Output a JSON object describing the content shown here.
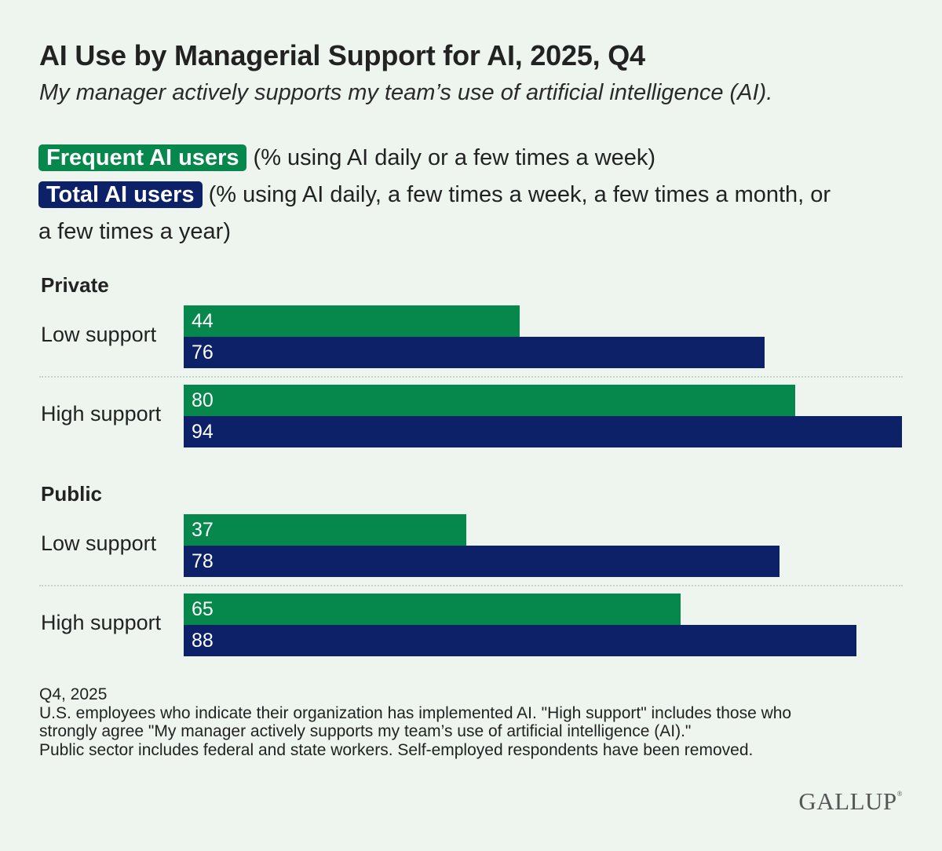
{
  "title": "AI Use by Managerial Support for AI, 2025, Q4",
  "subtitle": "My manager actively supports my team’s use of artificial intelligence (AI).",
  "legend": {
    "frequent_label": "Frequent AI users",
    "frequent_desc": "(% using AI daily or a few times a week)",
    "total_label": "Total AI users",
    "total_desc_line1": "(% using AI daily, a few times a week, a few times a month, or",
    "total_desc_line2": "a few times a year)"
  },
  "colors": {
    "frequent": "#06884c",
    "total": "#0d2168",
    "background": "#eef5ee"
  },
  "chart_data": {
    "type": "bar",
    "orientation": "horizontal",
    "groups": [
      {
        "name": "Private",
        "rows": [
          {
            "label": "Low support",
            "frequent": 44,
            "total": 76
          },
          {
            "label": "High support",
            "frequent": 80,
            "total": 94
          }
        ]
      },
      {
        "name": "Public",
        "rows": [
          {
            "label": "Low support",
            "frequent": 37,
            "total": 78
          },
          {
            "label": "High support",
            "frequent": 65,
            "total": 88
          }
        ]
      }
    ],
    "series": [
      {
        "name": "Frequent AI users",
        "key": "frequent",
        "color": "#06884c"
      },
      {
        "name": "Total AI users",
        "key": "total",
        "color": "#0d2168"
      }
    ],
    "xlim": [
      0,
      94
    ],
    "data_labels": true,
    "grid": false
  },
  "footnote": {
    "line1": "Q4, 2025",
    "line2": "U.S. employees who indicate their organization has implemented AI. \"High support\" includes those who",
    "line3": "strongly agree \"My manager actively supports my team’s use of artificial intelligence (AI).\"",
    "line4": "Public sector includes federal and state workers. Self-employed respondents have been removed."
  },
  "logo": {
    "text": "GALLUP",
    "mark": "®"
  }
}
